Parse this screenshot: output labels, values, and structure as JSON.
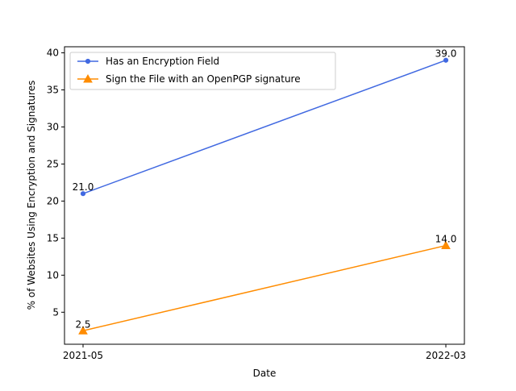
{
  "chart_data": {
    "type": "line",
    "title": "",
    "xlabel": "Date",
    "ylabel": "% of Websites Using Encryption and Signatures",
    "x": [
      "2021-05",
      "2022-03"
    ],
    "ylim": [
      0.68,
      40.82
    ],
    "yticks": [
      5,
      10,
      15,
      20,
      25,
      30,
      35,
      40
    ],
    "grid": false,
    "legend_position": "top-left",
    "series": [
      {
        "name": "Has an Encryption Field",
        "values": [
          21.0,
          39.0
        ],
        "data_labels": [
          "21.0",
          "39.0"
        ],
        "color": "#4169e1",
        "marker": "circle"
      },
      {
        "name": "Sign the File with an OpenPGP signature",
        "values": [
          2.5,
          14.0
        ],
        "data_labels": [
          "2.5",
          "14.0"
        ],
        "color": "#ff8c00",
        "marker": "triangle"
      }
    ]
  }
}
